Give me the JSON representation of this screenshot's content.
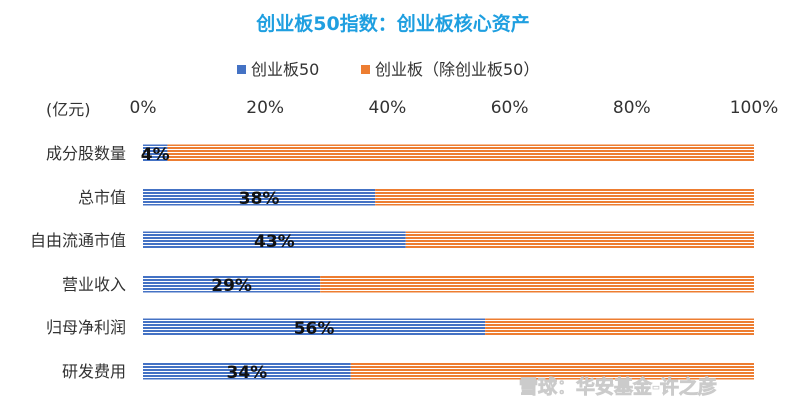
{
  "chart_data": {
    "type": "bar",
    "orientation": "horizontal",
    "stacked": "percent",
    "title": "创业板50指数：创业板核心资产",
    "unit_label": "(亿元)",
    "categories": [
      "成分股数量",
      "总市值",
      "自由流通市值",
      "营业收入",
      "归母净利润",
      "研发费用"
    ],
    "series": [
      {
        "name": "创业板50",
        "values": [
          4,
          38,
          43,
          29,
          56,
          34
        ],
        "color": "#4472c4"
      },
      {
        "name": "创业板（除创业板50）",
        "values": [
          96,
          62,
          57,
          71,
          44,
          66
        ],
        "color": "#ed7d31"
      }
    ],
    "data_labels": [
      "4%",
      "38%",
      "43%",
      "29%",
      "56%",
      "34%"
    ],
    "x_ticks": [
      "0%",
      "20%",
      "40%",
      "60%",
      "80%",
      "100%"
    ],
    "xlim": [
      0,
      100
    ],
    "legend_position": "top",
    "grid": false
  },
  "watermark": {
    "text": "雪球：华安基金-许之彦"
  }
}
